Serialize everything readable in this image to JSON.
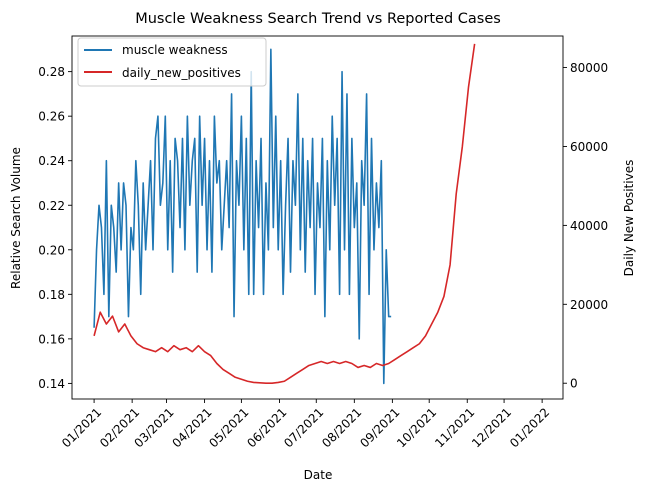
{
  "chart_data": {
    "type": "line",
    "title": "Muscle Weakness Search Trend vs Reported Cases",
    "xlabel": "Date",
    "ylabel_left": "Relative Search Volume",
    "ylabel_right": "Daily New Positives",
    "x_ticks": [
      "01/2021",
      "02/2021",
      "03/2021",
      "04/2021",
      "05/2021",
      "06/2021",
      "07/2021",
      "08/2021",
      "09/2021",
      "10/2021",
      "11/2021",
      "12/2021",
      "01/2022"
    ],
    "y_left_ticks": [
      "0.14",
      "0.16",
      "0.18",
      "0.20",
      "0.22",
      "0.24",
      "0.26",
      "0.28"
    ],
    "y_right_ticks": [
      "0",
      "20000",
      "40000",
      "60000",
      "80000"
    ],
    "ylim_left": [
      0.133,
      0.296
    ],
    "ylim_right": [
      -4000,
      88000
    ],
    "xlim": [
      "2020-12-14",
      "2022-01-18"
    ],
    "legend_position": "top-left",
    "grid": false,
    "colors": {
      "left_series": "#1f77b4",
      "right_series": "#d62728"
    },
    "series": [
      {
        "name": "muscle weakness",
        "axis": "left",
        "start_date": "2021-01-01",
        "step_days": 2,
        "values": [
          0.165,
          0.2,
          0.22,
          0.21,
          0.18,
          0.24,
          0.17,
          0.22,
          0.21,
          0.19,
          0.23,
          0.2,
          0.23,
          0.22,
          0.17,
          0.21,
          0.2,
          0.24,
          0.22,
          0.18,
          0.23,
          0.2,
          0.22,
          0.24,
          0.2,
          0.25,
          0.26,
          0.22,
          0.23,
          0.26,
          0.2,
          0.24,
          0.19,
          0.25,
          0.24,
          0.21,
          0.25,
          0.2,
          0.26,
          0.22,
          0.24,
          0.25,
          0.19,
          0.26,
          0.22,
          0.25,
          0.2,
          0.24,
          0.19,
          0.26,
          0.23,
          0.24,
          0.2,
          0.22,
          0.24,
          0.21,
          0.27,
          0.17,
          0.24,
          0.22,
          0.26,
          0.2,
          0.25,
          0.18,
          0.28,
          0.18,
          0.24,
          0.21,
          0.25,
          0.18,
          0.23,
          0.2,
          0.29,
          0.21,
          0.26,
          0.2,
          0.24,
          0.18,
          0.22,
          0.25,
          0.19,
          0.24,
          0.22,
          0.27,
          0.2,
          0.25,
          0.19,
          0.24,
          0.21,
          0.25,
          0.18,
          0.23,
          0.21,
          0.25,
          0.17,
          0.24,
          0.2,
          0.26,
          0.22,
          0.25,
          0.18,
          0.28,
          0.2,
          0.27,
          0.18,
          0.25,
          0.21,
          0.23,
          0.16,
          0.24,
          0.22,
          0.27,
          0.18,
          0.25,
          0.2,
          0.23,
          0.21,
          0.24,
          0.14,
          0.2,
          0.17
        ],
        "end_value": 0.17
      },
      {
        "name": "daily_new_positives",
        "axis": "right",
        "start_date": "2021-01-01",
        "step_days": 5,
        "values": [
          12000,
          18000,
          15000,
          17000,
          13000,
          15000,
          12000,
          10000,
          9000,
          8500,
          8000,
          9000,
          8000,
          9500,
          8500,
          9000,
          8000,
          9500,
          8000,
          7000,
          5000,
          3500,
          2500,
          1500,
          1000,
          500,
          200,
          100,
          0,
          0,
          200,
          500,
          1500,
          2500,
          3500,
          4500,
          5000,
          5500,
          5000,
          5500,
          5000,
          5500,
          5000,
          4000,
          4500,
          4000,
          5000,
          4500,
          5000,
          6000,
          7000,
          8000,
          9000,
          10000,
          12000,
          15000,
          18000,
          22000,
          30000,
          48000,
          60000,
          75000,
          86000
        ]
      }
    ]
  }
}
